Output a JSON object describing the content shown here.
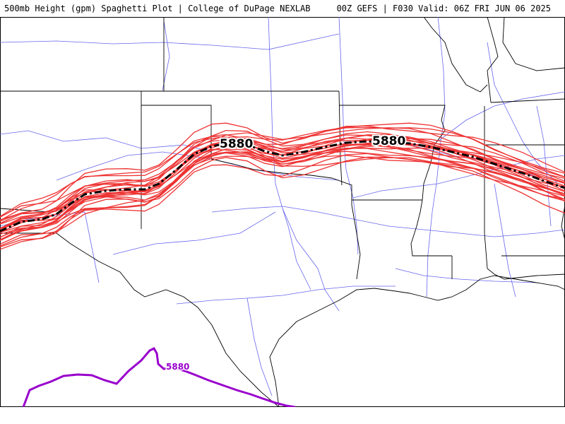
{
  "header": {
    "title_left": "500mb Height (gpm) Spaghetti Plot | College of DuPage NEXLAB",
    "title_right": "00Z GEFS | F030 Valid: 06Z FRI JUN 06 2025"
  },
  "map": {
    "contour_labels": {
      "mean_left": "5880",
      "mean_right": "5880",
      "purple": "5880"
    },
    "colors": {
      "member": "#ee3333",
      "mean": "#000000",
      "other_contour": "#9900cc",
      "state_border": "#000000",
      "road": "#6666ee",
      "coast": "#000000"
    }
  }
}
